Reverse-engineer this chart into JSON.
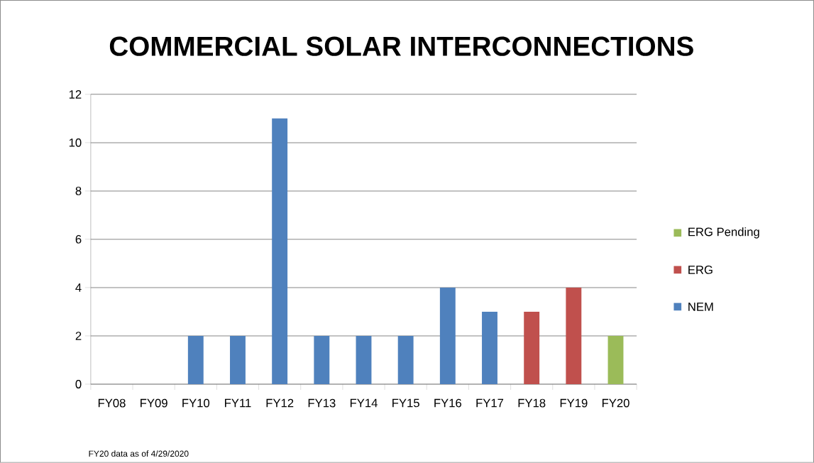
{
  "chart_data": {
    "type": "bar",
    "title": "COMMERCIAL SOLAR INTERCONNECTIONS",
    "categories": [
      "FY08",
      "FY09",
      "FY10",
      "FY11",
      "FY12",
      "FY13",
      "FY14",
      "FY15",
      "FY16",
      "FY17",
      "FY18",
      "FY19",
      "FY20"
    ],
    "series": [
      {
        "name": "NEM",
        "color": "#4f81bd",
        "values": [
          null,
          null,
          2,
          2,
          11,
          2,
          2,
          2,
          4,
          3,
          null,
          null,
          null
        ]
      },
      {
        "name": "ERG",
        "color": "#c0504d",
        "values": [
          null,
          null,
          null,
          null,
          null,
          null,
          null,
          null,
          null,
          null,
          3,
          4,
          null
        ]
      },
      {
        "name": "ERG Pending",
        "color": "#9bbb59",
        "values": [
          null,
          null,
          null,
          null,
          null,
          null,
          null,
          null,
          null,
          null,
          null,
          null,
          2
        ]
      }
    ],
    "stacked": true,
    "ylim": [
      0,
      12
    ],
    "yticks": [
      0,
      2,
      4,
      6,
      8,
      10,
      12
    ],
    "grid": "y",
    "legend": "right",
    "annotations": [
      "FY20 data as of 4/29/2020"
    ]
  }
}
